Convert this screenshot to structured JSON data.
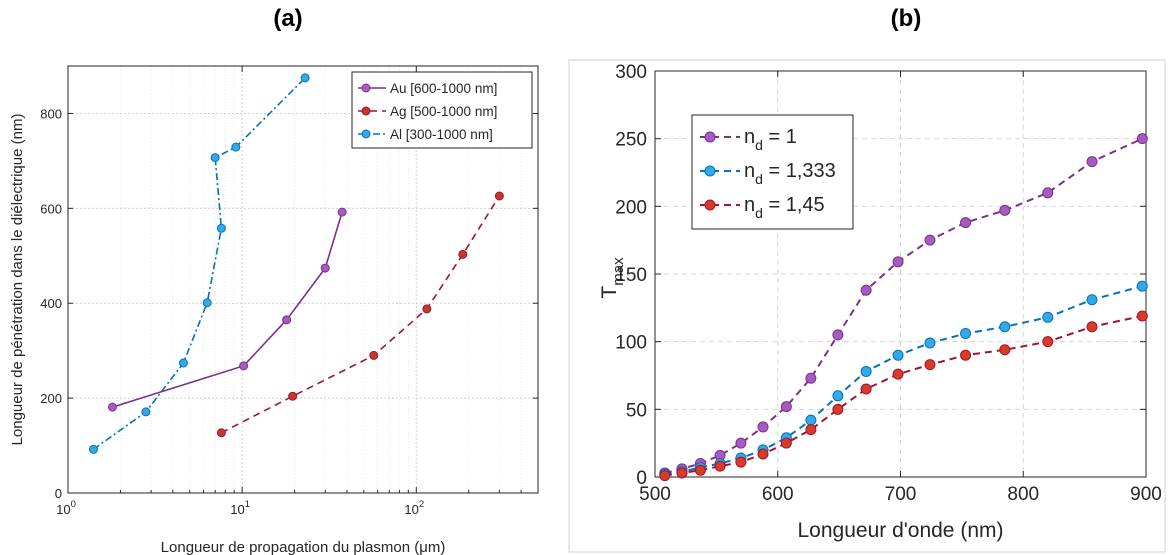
{
  "panel_tags": {
    "a": "(a)",
    "b": "(b)"
  },
  "chart_data": [
    {
      "id": "a",
      "type": "line",
      "xscale": "log",
      "xlim": [
        1,
        500
      ],
      "ylim": [
        0,
        900
      ],
      "xlabel": "Longueur de propagation du plasmon (μm)",
      "ylabel": "Longueur de pénétration dans le diélectrique (nm)",
      "xticks": [
        {
          "value": 1,
          "label": "10",
          "exp": "0"
        },
        {
          "value": 10,
          "label": "10",
          "exp": "1"
        },
        {
          "value": 100,
          "label": "10",
          "exp": "2"
        }
      ],
      "yticks": [
        0,
        200,
        400,
        600,
        800
      ],
      "grid": true,
      "legend_position": "top-right",
      "series": [
        {
          "name": "Au [600-1000 nm]",
          "color": "#7e2f8e",
          "marker_fill": "#a55bc0",
          "line_style": "solid",
          "x": [
            1.8,
            10.2,
            18.0,
            30.0,
            37.5
          ],
          "y": [
            181,
            268,
            365,
            474,
            592
          ]
        },
        {
          "name": "Ag [500-1000 nm]",
          "color": "#a2142f",
          "marker_fill": "#c0392f",
          "line_style": "dashed",
          "x": [
            7.6,
            19.5,
            57.0,
            115.0,
            185.0,
            300.0
          ],
          "y": [
            127,
            204,
            290,
            388,
            503,
            626
          ]
        },
        {
          "name": "Al [300-1000 nm]",
          "color": "#0072bd",
          "marker_fill": "#35a9e8",
          "line_style": "dashdot",
          "x": [
            1.4,
            2.8,
            4.6,
            6.3,
            7.6,
            7.0,
            9.2,
            23.0
          ],
          "y": [
            92,
            171,
            274,
            401,
            558,
            707,
            729,
            875
          ]
        }
      ]
    },
    {
      "id": "b",
      "type": "line",
      "xlim": [
        500,
        900
      ],
      "ylim": [
        0,
        300
      ],
      "xlabel": "Longueur d'onde (nm)",
      "ylabel_main": "T",
      "ylabel_sub": "max",
      "xticks": [
        500,
        600,
        700,
        800,
        900
      ],
      "yticks": [
        0,
        50,
        100,
        150,
        200,
        250,
        300
      ],
      "grid": true,
      "legend_position": "top-left",
      "series": [
        {
          "name": "n",
          "name_sub": "d",
          "name_rest": " = 1",
          "color": "#7e2f8e",
          "marker_fill": "#a55bc0",
          "line_style": "dashed",
          "x": [
            508,
            522,
            537,
            553,
            570,
            588,
            607,
            627,
            649,
            672,
            698,
            724,
            753,
            785,
            820,
            856,
            897
          ],
          "y": [
            3,
            6,
            10,
            16,
            25,
            37,
            52,
            73,
            105,
            138,
            159,
            175,
            188,
            197,
            210,
            233,
            250
          ]
        },
        {
          "name": "n",
          "name_sub": "d",
          "name_rest": " = 1,333",
          "color": "#0072bd",
          "marker_fill": "#35a9e8",
          "line_style": "dashed",
          "x": [
            508,
            522,
            537,
            553,
            570,
            588,
            607,
            627,
            649,
            672,
            698,
            724,
            753,
            785,
            820,
            856,
            897
          ],
          "y": [
            2,
            4,
            7,
            10,
            14,
            20,
            29,
            42,
            60,
            78,
            90,
            99,
            106,
            111,
            118,
            131,
            141
          ]
        },
        {
          "name": "n",
          "name_sub": "d",
          "name_rest": " = 1,45",
          "color": "#a2142f",
          "marker_fill": "#d83b27",
          "line_style": "dashed",
          "x": [
            508,
            522,
            537,
            553,
            570,
            588,
            607,
            627,
            649,
            672,
            698,
            724,
            753,
            785,
            820,
            856,
            897
          ],
          "y": [
            1,
            3,
            5,
            8,
            11,
            17,
            25,
            35,
            50,
            65,
            76,
            83,
            90,
            94,
            100,
            111,
            119
          ]
        }
      ]
    }
  ]
}
